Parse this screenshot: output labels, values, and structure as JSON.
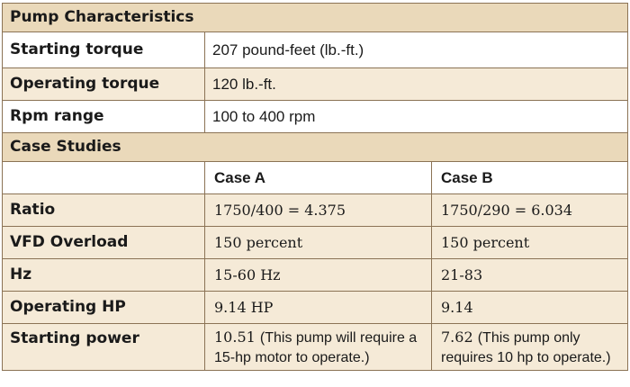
{
  "pump": {
    "title": "Pump Characteristics",
    "rows": [
      {
        "label": "Starting torque",
        "value": "207 pound-feet (lb.-ft.)"
      },
      {
        "label": "Operating torque",
        "value": "120 lb.-ft."
      },
      {
        "label": "Rpm range",
        "value": "100 to 400 rpm"
      }
    ]
  },
  "cases": {
    "title": "Case Studies",
    "col_a": "Case A",
    "col_b": "Case B",
    "rows": [
      {
        "label": "Ratio",
        "a": "1750/400 = 4.375",
        "b": "1750/290 = 6.034"
      },
      {
        "label": "VFD Overload",
        "a": "150 percent",
        "b": "150 percent"
      },
      {
        "label": "Hz",
        "a": "15-60 Hz",
        "b": "21-83"
      },
      {
        "label": "Operating HP",
        "a": "9.14 HP",
        "b": "9.14"
      },
      {
        "label": "Starting power",
        "a_value": "10.51",
        "a_note": "(This pump will require a 15-hp motor to operate.)",
        "b_value": "7.62",
        "b_note": "(This pump only requires 10 hp to operate.)"
      }
    ]
  }
}
